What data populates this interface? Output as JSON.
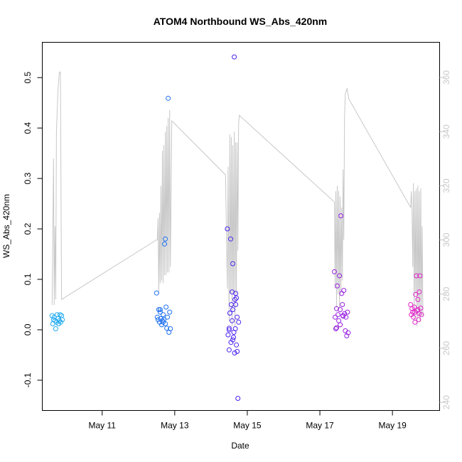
{
  "chart_data": {
    "type": "scatter",
    "title": "ATOM4 Northbound WS_Abs_420nm",
    "xlabel": "Date",
    "ylabel": "WS_Abs_420nm",
    "x_start": "May 9 12:00",
    "x_tick_labels": [
      "May 11",
      "May 13",
      "May 15",
      "May 17",
      "May 19"
    ],
    "xlim_days": [
      9.35,
      20.3
    ],
    "x_ticks_days": [
      11,
      13,
      15,
      17,
      19
    ],
    "ylim": [
      -0.16,
      0.57
    ],
    "y_ticks": [
      -0.1,
      0.0,
      0.1,
      0.2,
      0.3,
      0.4,
      0.5
    ],
    "y_tick_labels": [
      "-0.1",
      "0.0",
      "0.1",
      "0.2",
      "0.3",
      "0.4",
      "0.5"
    ],
    "y2_ticks": [
      240,
      260,
      280,
      300,
      320,
      340,
      360
    ],
    "y2_tick_labels": [
      "240",
      "260",
      "280",
      "300",
      "320",
      "340",
      "360"
    ],
    "y2lim": [
      237,
      373
    ],
    "line_color": "#c8c8c8",
    "grid": false,
    "groups": [
      {
        "color": "#1fa9f0",
        "points": [
          [
            9.62,
            0.028
          ],
          [
            9.64,
            0.012
          ],
          [
            9.66,
            0.02
          ],
          [
            9.68,
            0.025
          ],
          [
            9.7,
            0.018
          ],
          [
            9.72,
            0.002
          ],
          [
            9.74,
            0.015
          ],
          [
            9.76,
            0.03
          ],
          [
            9.78,
            0.022
          ],
          [
            9.8,
            0.012
          ],
          [
            9.82,
            0.018
          ],
          [
            9.84,
            0.03
          ],
          [
            9.86,
            0.015
          ],
          [
            9.88,
            0.028
          ],
          [
            9.9,
            0.02
          ]
        ]
      },
      {
        "color": "#1d6ff0",
        "points": [
          [
            12.5,
            0.073
          ],
          [
            12.52,
            0.025
          ],
          [
            12.54,
            0.02
          ],
          [
            12.56,
            0.04
          ],
          [
            12.58,
            0.015
          ],
          [
            12.6,
            0.035
          ],
          [
            12.62,
            0.022
          ],
          [
            12.64,
            0.01
          ],
          [
            12.66,
            0.018
          ],
          [
            12.68,
            0.03
          ],
          [
            12.7,
            0.02
          ],
          [
            12.72,
            0.17
          ],
          [
            12.74,
            0.18
          ],
          [
            12.76,
            0.045
          ],
          [
            12.78,
            0.003
          ],
          [
            12.8,
            0.025
          ],
          [
            12.82,
            0.459
          ],
          [
            12.84,
            -0.005
          ],
          [
            12.86,
            0.035
          ],
          [
            12.88,
            0.002
          ],
          [
            12.6,
            0.04
          ],
          [
            12.68,
            0.015
          ],
          [
            12.74,
            0.012
          ]
        ]
      },
      {
        "color": "#4d22f0",
        "points": [
          [
            14.45,
            0.2
          ],
          [
            14.47,
            -0.01
          ],
          [
            14.5,
            0.003
          ],
          [
            14.52,
            0.033
          ],
          [
            14.54,
            0.18
          ],
          [
            14.56,
            0.05
          ],
          [
            14.58,
            0.018
          ],
          [
            14.6,
            0.131
          ],
          [
            14.62,
            -0.015
          ],
          [
            14.64,
            0.541
          ],
          [
            14.66,
            0.06
          ],
          [
            14.68,
            0.072
          ],
          [
            14.7,
            -0.03
          ],
          [
            14.72,
            0.025
          ],
          [
            14.74,
            -0.136
          ],
          [
            14.76,
            0.015
          ],
          [
            14.5,
            -0.04
          ],
          [
            14.55,
            -0.025
          ],
          [
            14.6,
            0.04
          ],
          [
            14.65,
            -0.046
          ],
          [
            14.7,
            0.063
          ],
          [
            14.72,
            -0.043
          ],
          [
            14.5,
            0.0
          ],
          [
            14.58,
            0.075
          ],
          [
            14.63,
            -0.005
          ],
          [
            14.68,
            0.05
          ],
          [
            14.6,
            -0.02
          ],
          [
            14.67,
            0.002
          ]
        ]
      },
      {
        "color": "#9820e0",
        "points": [
          [
            17.4,
            0.115
          ],
          [
            17.42,
            0.025
          ],
          [
            17.44,
            0.002
          ],
          [
            17.46,
            0.042
          ],
          [
            17.48,
            0.087
          ],
          [
            17.5,
            0.03
          ],
          [
            17.52,
            0.018
          ],
          [
            17.54,
            0.107
          ],
          [
            17.56,
            0.04
          ],
          [
            17.58,
            0.226
          ],
          [
            17.6,
            0.072
          ],
          [
            17.62,
            0.05
          ],
          [
            17.64,
            0.027
          ],
          [
            17.66,
            0.078
          ],
          [
            17.68,
            0.032
          ],
          [
            17.7,
            -0.002
          ],
          [
            17.72,
            0.025
          ],
          [
            17.74,
            -0.012
          ],
          [
            17.76,
            0.035
          ],
          [
            17.78,
            -0.006
          ],
          [
            17.46,
            0.004
          ],
          [
            17.56,
            0.01
          ],
          [
            17.64,
            0.028
          ]
        ]
      },
      {
        "color": "#e024c8",
        "points": [
          [
            19.5,
            0.05
          ],
          [
            19.52,
            0.03
          ],
          [
            19.54,
            0.042
          ],
          [
            19.56,
            0.035
          ],
          [
            19.58,
            0.025
          ],
          [
            19.6,
            0.045
          ],
          [
            19.62,
            0.015
          ],
          [
            19.64,
            0.07
          ],
          [
            19.66,
            0.107
          ],
          [
            19.68,
            0.038
          ],
          [
            19.7,
            0.06
          ],
          [
            19.72,
            0.02
          ],
          [
            19.74,
            0.075
          ],
          [
            19.76,
            0.107
          ],
          [
            19.78,
            0.043
          ],
          [
            19.8,
            0.03
          ],
          [
            19.62,
            0.035
          ],
          [
            19.7,
            0.04
          ],
          [
            19.74,
            0.032
          ]
        ]
      }
    ],
    "line_points": [
      [
        9.62,
        276
      ],
      [
        9.64,
        302
      ],
      [
        9.66,
        330
      ],
      [
        9.68,
        276
      ],
      [
        9.7,
        305
      ],
      [
        9.72,
        278
      ],
      [
        9.74,
        340
      ],
      [
        9.78,
        355
      ],
      [
        9.82,
        362
      ],
      [
        9.85,
        362
      ],
      [
        9.88,
        278
      ],
      [
        12.5,
        300
      ],
      [
        12.52,
        300
      ],
      [
        12.54,
        308
      ],
      [
        12.56,
        280
      ],
      [
        12.58,
        310
      ],
      [
        12.6,
        284
      ],
      [
        12.62,
        320
      ],
      [
        12.64,
        285
      ],
      [
        12.66,
        333
      ],
      [
        12.68,
        284
      ],
      [
        12.7,
        335
      ],
      [
        12.72,
        287
      ],
      [
        12.74,
        340
      ],
      [
        12.76,
        287
      ],
      [
        12.78,
        342
      ],
      [
        12.8,
        288
      ],
      [
        12.82,
        345
      ],
      [
        12.84,
        288
      ],
      [
        12.86,
        348
      ],
      [
        12.88,
        290
      ],
      [
        12.92,
        344
      ],
      [
        14.4,
        324
      ],
      [
        14.45,
        282
      ],
      [
        14.47,
        327
      ],
      [
        14.5,
        270
      ],
      [
        14.52,
        339
      ],
      [
        14.54,
        280
      ],
      [
        14.56,
        338
      ],
      [
        14.58,
        268
      ],
      [
        14.6,
        335
      ],
      [
        14.62,
        280
      ],
      [
        14.64,
        340
      ],
      [
        14.66,
        268
      ],
      [
        14.68,
        336
      ],
      [
        14.7,
        280
      ],
      [
        14.72,
        336
      ],
      [
        14.74,
        296
      ],
      [
        14.76,
        343
      ],
      [
        14.78,
        346
      ],
      [
        17.4,
        314
      ],
      [
        17.42,
        282
      ],
      [
        17.44,
        318
      ],
      [
        17.46,
        275
      ],
      [
        17.48,
        320
      ],
      [
        17.5,
        280
      ],
      [
        17.52,
        318
      ],
      [
        17.54,
        275
      ],
      [
        17.56,
        316
      ],
      [
        17.58,
        280
      ],
      [
        17.6,
        312
      ],
      [
        17.62,
        285
      ],
      [
        17.64,
        326
      ],
      [
        17.66,
        300
      ],
      [
        17.68,
        345
      ],
      [
        17.7,
        354
      ],
      [
        17.75,
        356
      ],
      [
        17.8,
        352
      ],
      [
        19.5,
        312
      ],
      [
        19.52,
        318
      ],
      [
        19.54,
        311
      ],
      [
        19.56,
        290
      ],
      [
        19.58,
        321
      ],
      [
        19.6,
        270
      ],
      [
        19.62,
        318
      ],
      [
        19.64,
        280
      ],
      [
        19.66,
        319
      ],
      [
        19.68,
        268
      ],
      [
        19.7,
        320
      ],
      [
        19.72,
        272
      ],
      [
        19.74,
        318
      ],
      [
        19.76,
        270
      ],
      [
        19.78,
        319
      ],
      [
        19.8,
        272
      ],
      [
        19.82,
        305
      ],
      [
        19.84,
        272
      ]
    ]
  }
}
